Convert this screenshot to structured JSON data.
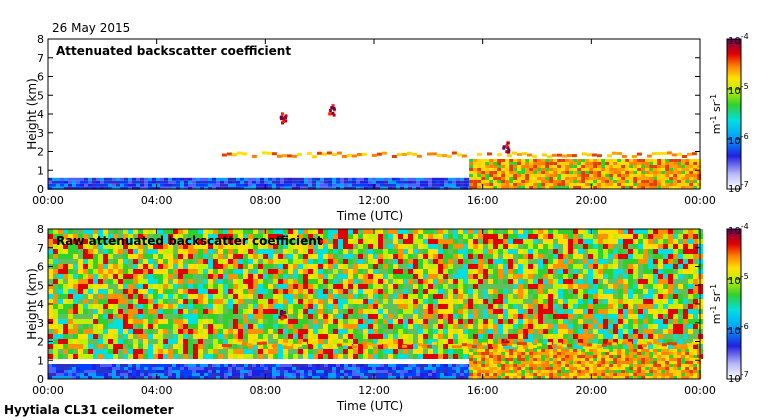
{
  "date": "26 May 2015",
  "footer": "Hyytiala CL31 ceilometer",
  "chart_data": [
    {
      "type": "heatmap",
      "title": "Attenuated backscatter coefficient",
      "xlabel": "Time (UTC)",
      "ylabel": "Height (km)",
      "x_ticks": [
        "00:00",
        "04:00",
        "08:00",
        "12:00",
        "16:00",
        "20:00",
        "00:00"
      ],
      "xlim_hours": [
        0,
        24
      ],
      "ylim": [
        0,
        8
      ],
      "y_ticks": [
        0,
        1,
        2,
        3,
        4,
        5,
        6,
        7,
        8
      ],
      "colorbar": {
        "scale": "log",
        "range": [
          1e-07,
          0.0001
        ],
        "tick_labels": [
          "10-4",
          "10-5",
          "10-6",
          "10-7"
        ],
        "units": "m-1 sr-1"
      },
      "features": [
        {
          "kind": "boundary-layer",
          "t_start": 0,
          "t_end": 15.5,
          "h_bottom": 0,
          "h_top": 0.6,
          "level": "low"
        },
        {
          "kind": "mixed-layer",
          "t_start": 15.5,
          "t_end": 24,
          "h_bottom": 0,
          "h_top": 1.6,
          "level": "high"
        },
        {
          "kind": "cloud",
          "t": 8.6,
          "h": 3.9,
          "level": "very-high"
        },
        {
          "kind": "cloud",
          "t": 10.4,
          "h": 4.3,
          "level": "very-high"
        },
        {
          "kind": "cloud",
          "t": 16.8,
          "h": 2.3,
          "level": "very-high"
        },
        {
          "kind": "cloud-band",
          "t_start": 6.4,
          "t_end": 24,
          "h": 1.9,
          "level": "high"
        }
      ]
    },
    {
      "type": "heatmap",
      "title": "Raw attenuated backscatter coefficient",
      "xlabel": "Time (UTC)",
      "ylabel": "Height (km)",
      "x_ticks": [
        "00:00",
        "04:00",
        "08:00",
        "12:00",
        "16:00",
        "20:00",
        "00:00"
      ],
      "xlim_hours": [
        0,
        24
      ],
      "ylim": [
        0,
        8
      ],
      "y_ticks": [
        0,
        1,
        2,
        3,
        4,
        5,
        6,
        7,
        8
      ],
      "colorbar": {
        "scale": "log",
        "range": [
          1e-07,
          0.0001
        ],
        "tick_labels": [
          "10-4",
          "10-5",
          "10-6",
          "10-7"
        ],
        "units": "m-1 sr-1"
      },
      "features": [
        {
          "kind": "noise-field",
          "t_start": 0,
          "t_end": 24,
          "h_bottom": 1.2,
          "h_top": 8,
          "level": "medium"
        },
        {
          "kind": "boundary-layer",
          "t_start": 0,
          "t_end": 15.5,
          "h_bottom": 0,
          "h_top": 0.8,
          "level": "low"
        },
        {
          "kind": "mixed-layer",
          "t_start": 15.5,
          "t_end": 24,
          "h_bottom": 0,
          "h_top": 1.6,
          "level": "high"
        },
        {
          "kind": "cloud",
          "t": 8.6,
          "h": 3.6,
          "level": "very-high"
        },
        {
          "kind": "cloud",
          "t": 16.8,
          "h": 2.1,
          "level": "very-high"
        },
        {
          "kind": "cloud-band",
          "t_start": 6.4,
          "t_end": 24,
          "h": 1.9,
          "level": "high"
        }
      ]
    }
  ]
}
